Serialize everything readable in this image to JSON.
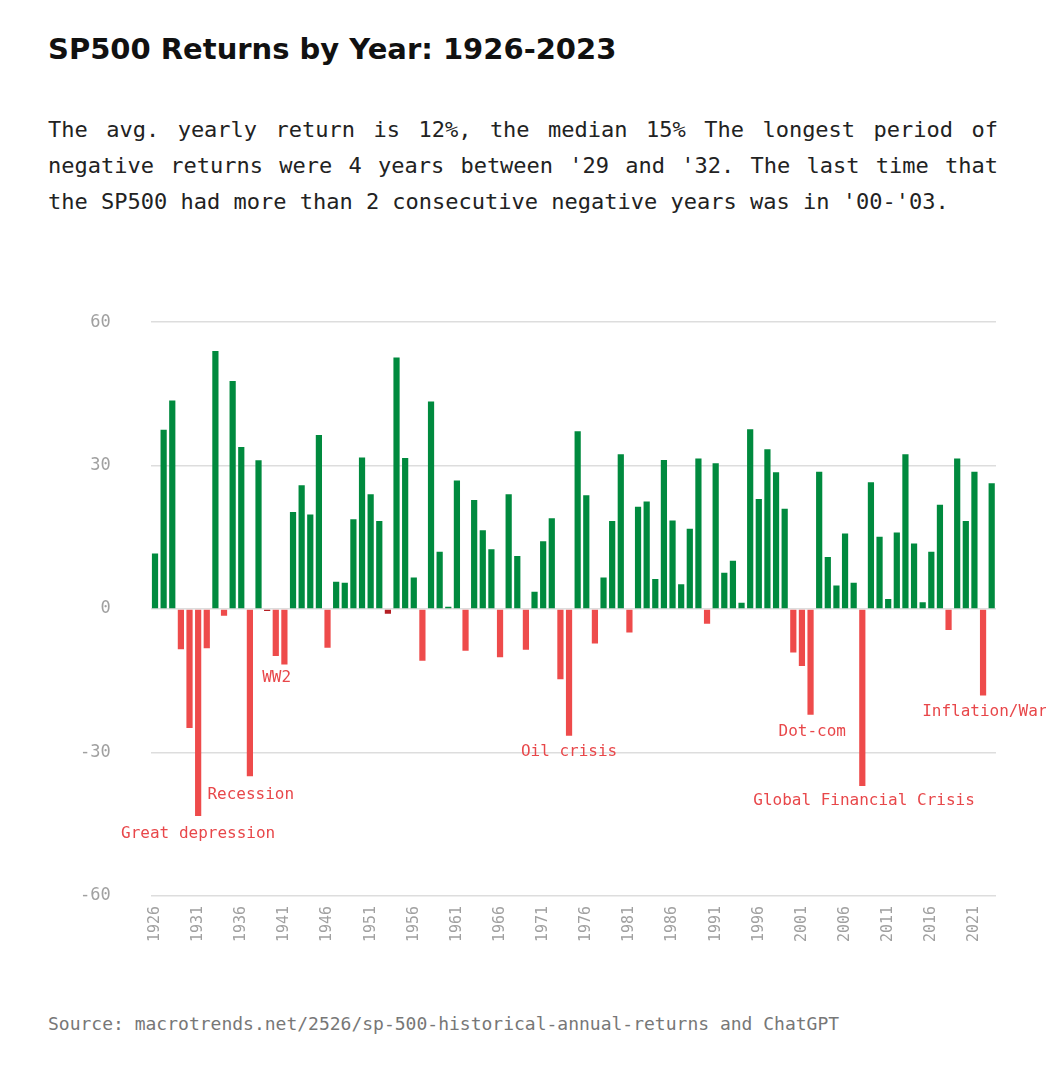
{
  "chart_data": {
    "type": "bar",
    "title": "SP500 Returns by Year: 1926-2023",
    "subtitle": "The avg. yearly return is 12%, the median 15% The longest period of negative returns were 4 years between '29 and '32. The last time that the SP500 had more than 2 consecutive negative years was in '00-'03.",
    "source": "Source: macrotrends.net/2526/sp-500-historical-annual-returns and ChatGPT",
    "categories": [
      "1926",
      null,
      null,
      null,
      null,
      "1931",
      null,
      null,
      null,
      null,
      "1936",
      null,
      null,
      null,
      null,
      "1941",
      null,
      null,
      null,
      null,
      "1946",
      null,
      null,
      null,
      null,
      "1951",
      null,
      null,
      null,
      null,
      "1956",
      null,
      null,
      null,
      null,
      "1961",
      null,
      null,
      null,
      null,
      "1966",
      null,
      null,
      null,
      null,
      "1971",
      null,
      null,
      null,
      null,
      "1976",
      null,
      null,
      null,
      null,
      "1981",
      null,
      null,
      null,
      null,
      "1986",
      null,
      null,
      null,
      null,
      "1991",
      null,
      null,
      null,
      null,
      "1996",
      null,
      null,
      null,
      null,
      "2001",
      null,
      null,
      null,
      null,
      "2006",
      null,
      null,
      null,
      null,
      "2011",
      null,
      null,
      null,
      null,
      "2016",
      null,
      null,
      null,
      null,
      "2021",
      null,
      null
    ],
    "values": [
      11.6,
      37.5,
      43.6,
      -8.4,
      -24.9,
      -43.3,
      -8.2,
      54.0,
      -1.4,
      47.7,
      33.9,
      -35.0,
      31.1,
      -0.4,
      -9.8,
      -11.6,
      20.3,
      25.9,
      19.8,
      36.4,
      -8.1,
      5.7,
      5.5,
      18.8,
      31.7,
      24.0,
      18.4,
      -1.0,
      52.6,
      31.6,
      6.6,
      -10.8,
      43.4,
      12.0,
      0.5,
      26.9,
      -8.7,
      22.8,
      16.5,
      12.5,
      -10.1,
      24.0,
      11.1,
      -8.5,
      3.6,
      14.2,
      19.0,
      -14.7,
      -26.5,
      37.2,
      23.8,
      -7.2,
      6.6,
      18.4,
      32.4,
      -4.9,
      21.4,
      22.5,
      6.3,
      31.2,
      18.5,
      5.2,
      16.8,
      31.5,
      -3.1,
      30.5,
      7.6,
      10.1,
      1.3,
      37.6,
      23.0,
      33.4,
      28.6,
      21.0,
      -9.1,
      -11.9,
      -22.1,
      28.7,
      10.9,
      4.9,
      15.8,
      5.5,
      -37.0,
      26.5,
      15.1,
      2.1,
      16.0,
      32.4,
      13.7,
      1.4,
      12.0,
      21.8,
      -4.4,
      31.5,
      18.4,
      28.7,
      -18.1,
      26.3
    ],
    "colors": [
      "#008a3e",
      "#008a3e",
      "#008a3e",
      "#ee4b4b",
      "#ee4b4b",
      "#ee4b4b",
      "#ee4b4b",
      "#008a3e",
      "#ee4b4b",
      "#008a3e",
      "#008a3e",
      "#ee4b4b",
      "#008a3e",
      "#b51f24",
      "#ee4b4b",
      "#ee4b4b",
      "#008a3e",
      "#008a3e",
      "#008a3e",
      "#008a3e",
      "#ee4b4b",
      "#008a3e",
      "#008a3e",
      "#008a3e",
      "#008a3e",
      "#008a3e",
      "#008a3e",
      "#b51f24",
      "#008a3e",
      "#008a3e",
      "#008a3e",
      "#ee4b4b",
      "#008a3e",
      "#008a3e",
      "#008a3e",
      "#008a3e",
      "#ee4b4b",
      "#008a3e",
      "#008a3e",
      "#008a3e",
      "#ee4b4b",
      "#008a3e",
      "#008a3e",
      "#ee4b4b",
      "#008a3e",
      "#008a3e",
      "#008a3e",
      "#ee4b4b",
      "#ee4b4b",
      "#008a3e",
      "#008a3e",
      "#ee4b4b",
      "#008a3e",
      "#008a3e",
      "#008a3e",
      "#ee4b4b",
      "#008a3e",
      "#008a3e",
      "#008a3e",
      "#008a3e",
      "#008a3e",
      "#008a3e",
      "#008a3e",
      "#008a3e",
      "#ee4b4b",
      "#008a3e",
      "#008a3e",
      "#008a3e",
      "#008a3e",
      "#008a3e",
      "#008a3e",
      "#008a3e",
      "#008a3e",
      "#008a3e",
      "#ee4b4b",
      "#ee4b4b",
      "#ee4b4b",
      "#008a3e",
      "#008a3e",
      "#008a3e",
      "#008a3e",
      "#008a3e",
      "#ee4b4b",
      "#008a3e",
      "#008a3e",
      "#008a3e",
      "#008a3e",
      "#008a3e",
      "#008a3e",
      "#008a3e",
      "#008a3e",
      "#008a3e",
      "#ee4b4b",
      "#008a3e",
      "#008a3e",
      "#008a3e",
      "#ee4b4b",
      "#008a3e"
    ],
    "ylim": [
      -60,
      60
    ],
    "yticks": [
      -60,
      -30,
      0,
      30,
      60
    ],
    "grid": true,
    "annotations": [
      {
        "text": "Great depression",
        "x": 5,
        "y": -47
      },
      {
        "text": "Recession",
        "x": 11.1,
        "y": -38.8
      },
      {
        "text": "WW2",
        "x": 14.1,
        "y": -14.3
      },
      {
        "text": "Oil crisis",
        "x": 48,
        "y": -29.9
      },
      {
        "text": "Dot-com",
        "x": 76.2,
        "y": -25.6
      },
      {
        "text": "Global Financial Crisis",
        "x": 82.2,
        "y": -40.1
      },
      {
        "text": "Inflation/War",
        "x": 96.2,
        "y": -21.5
      }
    ]
  }
}
